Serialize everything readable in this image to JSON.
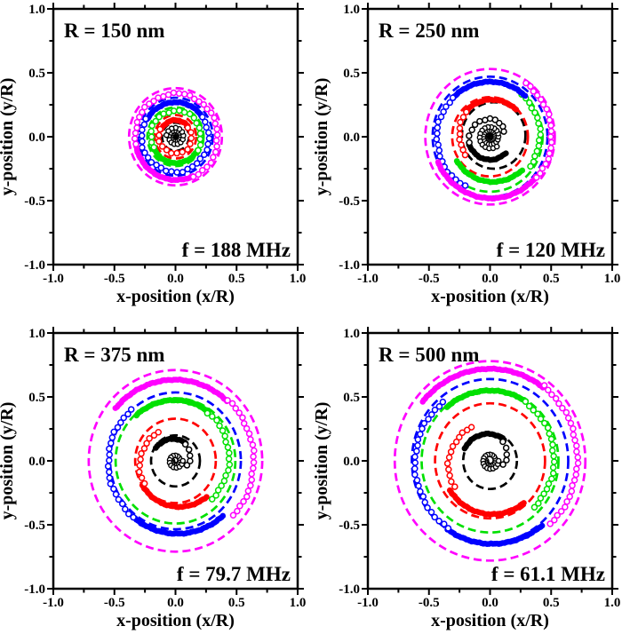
{
  "figure": {
    "background": "#ffffff",
    "text_color": "#000000",
    "description_colors": {
      "black": "#000000",
      "red": "#FF0000",
      "green": "#00E000",
      "blue": "#0000FF",
      "magenta": "#FF00FF"
    }
  },
  "chart_data": [
    {
      "type": "scatter",
      "radius_label": "R = 150 nm",
      "frequency_label": "f = 188 MHz",
      "xlabel": "x-position (x/R)",
      "ylabel": "y-position (y/R)",
      "xlim": [
        -1.0,
        1.0
      ],
      "ylim": [
        -1.0,
        1.0
      ],
      "tick_values": [
        -1,
        -0.5,
        0,
        0.5,
        1
      ],
      "xtick_labels": [
        "-1.0",
        "-0.5",
        "0.0",
        "0.5",
        "1.0"
      ],
      "ytick_labels": [
        "-1.0",
        "-0.5",
        "0.0",
        "0.5",
        "1.0"
      ],
      "minor_tick_step": 0.25,
      "series": [
        {
          "name": "black-segment",
          "color": "#000000",
          "dashed_circle": {
            "r": 0.11
          },
          "core_spiral": {
            "a0": 170,
            "turns": 3.0,
            "r0": 0.008,
            "r1": 0.075
          }
        },
        {
          "name": "red-segment",
          "color": "#FF0000",
          "dashed_circle": {
            "r": 0.17
          },
          "thick_arc": {
            "a0": 40,
            "a1": 155,
            "r0": 0.13,
            "r1": 0.13
          },
          "sparse_arc": {
            "a0": 155,
            "a1": 395,
            "r0": 0.135,
            "r1": 0.13
          }
        },
        {
          "name": "green-segment",
          "color": "#00E000",
          "dashed_circle": {
            "r": 0.23
          },
          "thick_arc": {
            "a0": 205,
            "a1": 330,
            "r0": 0.2,
            "r1": 0.21
          },
          "sparse_arc": {
            "a0": -30,
            "a1": 205,
            "r0": 0.21,
            "r1": 0.2
          }
        },
        {
          "name": "blue-segment",
          "color": "#0000FF",
          "dashed_circle": {
            "r": 0.305
          },
          "thick_arc": {
            "a0": 35,
            "a1": 150,
            "r0": 0.27,
            "r1": 0.27
          },
          "sparse_arc": {
            "a0": 150,
            "a1": 395,
            "r0": 0.28,
            "r1": 0.27
          }
        },
        {
          "name": "magenta-segment",
          "color": "#FF00FF",
          "dashed_circle": {
            "r": 0.38
          },
          "thick_arc": {
            "a0": 190,
            "a1": 295,
            "r0": 0.33,
            "r1": 0.34
          },
          "sparse_arc": {
            "a0": -65,
            "a1": 190,
            "r0": 0.35,
            "r1": 0.33
          }
        }
      ]
    },
    {
      "type": "scatter",
      "radius_label": "R = 250 nm",
      "frequency_label": "f = 120 MHz",
      "xlabel": "x-position (x/R)",
      "ylabel": "y-position (y/R)",
      "xlim": [
        -1.0,
        1.0
      ],
      "ylim": [
        -1.0,
        1.0
      ],
      "tick_values": [
        -1,
        -0.5,
        0,
        0.5,
        1
      ],
      "xtick_labels": [
        "-1.0",
        "-0.5",
        "0.0",
        "0.5",
        "1.0"
      ],
      "ytick_labels": [
        "-1.0",
        "-0.5",
        "0.0",
        "0.5",
        "1.0"
      ],
      "minor_tick_step": 0.25,
      "series": [
        {
          "name": "black-segment",
          "color": "#000000",
          "dashed_circle": {
            "r": 0.26,
            "cx": 0.03,
            "cy": 0.01
          },
          "core_spiral": {
            "a0": 90,
            "turns": 2.6,
            "r0": 0.015,
            "r1": 0.095
          },
          "sparse_arc": {
            "a0": 20,
            "a1": 195,
            "r0": 0.12,
            "r1": 0.17
          },
          "thick_arc": {
            "a0": 195,
            "a1": 315,
            "r0": 0.18,
            "r1": 0.18
          }
        },
        {
          "name": "red-segment",
          "color": "#FF0000",
          "dashed_circle": {
            "r": 0.31
          },
          "sparse_arc": {
            "a0": 135,
            "a1": 215,
            "r0": 0.27,
            "r1": 0.24
          },
          "thick_arc": {
            "a0": 45,
            "a1": 135,
            "r0": 0.3,
            "r1": 0.28
          }
        },
        {
          "name": "green-segment",
          "color": "#00E000",
          "dashed_circle": {
            "r": 0.43
          },
          "thick_arc": {
            "a0": 215,
            "a1": 315,
            "r0": 0.33,
            "r1": 0.37
          },
          "sparse_arc": {
            "a0": -35,
            "a1": 52,
            "r0": 0.4,
            "r1": 0.42
          }
        },
        {
          "name": "blue-segment",
          "color": "#0000FF",
          "dashed_circle": {
            "r": 0.47
          },
          "thick_arc": {
            "a0": 48,
            "a1": 135,
            "r0": 0.43,
            "r1": 0.43
          },
          "sparse_arc": {
            "a0": 135,
            "a1": 242,
            "r0": 0.43,
            "r1": 0.44
          }
        },
        {
          "name": "magenta-segment",
          "color": "#FF00FF",
          "dashed_circle": {
            "r": 0.53
          },
          "thick_arc": {
            "a0": 205,
            "a1": 320,
            "r0": 0.47,
            "r1": 0.49
          },
          "sparse_arc": {
            "a0": -40,
            "a1": 55,
            "r0": 0.5,
            "r1": 0.51
          }
        }
      ]
    },
    {
      "type": "scatter",
      "radius_label": "R = 375 nm",
      "frequency_label": "f = 79.7 MHz",
      "xlabel": "x-position (x/R)",
      "ylabel": "y-position (y/R)",
      "xlim": [
        -1.0,
        1.0
      ],
      "ylim": [
        -1.0,
        1.0
      ],
      "tick_values": [
        -1,
        -0.5,
        0,
        0.5,
        1
      ],
      "xtick_labels": [
        "-1.0",
        "-0.5",
        "0.0",
        "0.5",
        "1.0"
      ],
      "ytick_labels": [
        "-1.0",
        "-0.5",
        "0.0",
        "0.5",
        "1.0"
      ],
      "minor_tick_step": 0.25,
      "series": [
        {
          "name": "black-segment",
          "color": "#000000",
          "dashed_circle": {
            "r": 0.2
          },
          "core_spiral": {
            "a0": 180,
            "turns": 1.5,
            "r0": 0.025,
            "r1": 0.06
          },
          "sparse_arc": {
            "a0": -20,
            "a1": 58,
            "r0": 0.1,
            "r1": 0.15
          },
          "thick_arc": {
            "a0": 58,
            "a1": 148,
            "r0": 0.16,
            "r1": 0.19
          }
        },
        {
          "name": "red-segment",
          "color": "#FF0000",
          "dashed_circle": {
            "r": 0.33
          },
          "sparse_arc": {
            "a0": 122,
            "a1": 215,
            "r0": 0.26,
            "r1": 0.31
          },
          "thick_arc": {
            "a0": 215,
            "a1": 312,
            "r0": 0.33,
            "r1": 0.38
          }
        },
        {
          "name": "green-segment",
          "color": "#00E000",
          "dashed_circle": {
            "r": 0.49
          },
          "sparse_arc": {
            "a0": -45,
            "a1": 55,
            "r0": 0.42,
            "r1": 0.46
          },
          "thick_arc": {
            "a0": 55,
            "a1": 132,
            "r0": 0.47,
            "r1": 0.48
          }
        },
        {
          "name": "blue-segment",
          "color": "#0000FF",
          "dashed_circle": {
            "r": 0.535
          },
          "sparse_arc": {
            "a0": 132,
            "a1": 232,
            "r0": 0.54,
            "r1": 0.56
          },
          "thick_arc": {
            "a0": 232,
            "a1": 312,
            "r0": 0.56,
            "r1": 0.58
          }
        },
        {
          "name": "magenta-segment",
          "color": "#FF00FF",
          "dashed_circle": {
            "r": 0.71
          },
          "sparse_arc": {
            "a0": -42,
            "a1": 48,
            "r0": 0.64,
            "r1": 0.64
          },
          "thick_arc": {
            "a0": 48,
            "a1": 140,
            "r0": 0.63,
            "r1": 0.64
          }
        }
      ]
    },
    {
      "type": "scatter",
      "radius_label": "R = 500 nm",
      "frequency_label": "f = 61.1 MHz",
      "xlabel": "x-position (x/R)",
      "ylabel": "y-position (y/R)",
      "xlim": [
        -1.0,
        1.0
      ],
      "ylim": [
        -1.0,
        1.0
      ],
      "tick_values": [
        -1,
        -0.5,
        0,
        0.5,
        1
      ],
      "xtick_labels": [
        "-1.0",
        "-0.5",
        "0.0",
        "0.5",
        "1.0"
      ],
      "ytick_labels": [
        "-1.0",
        "-0.5",
        "0.0",
        "0.5",
        "1.0"
      ],
      "minor_tick_step": 0.25,
      "series": [
        {
          "name": "black-segment",
          "color": "#000000",
          "dashed_circle": {
            "r": 0.22
          },
          "core_spiral": {
            "a0": 180,
            "turns": 1.5,
            "r0": 0.03,
            "r1": 0.07
          },
          "sparse_arc": {
            "a0": -15,
            "a1": 55,
            "r0": 0.11,
            "r1": 0.18
          },
          "thick_arc": {
            "a0": 55,
            "a1": 155,
            "r0": 0.2,
            "r1": 0.23
          }
        },
        {
          "name": "red-segment",
          "color": "#FF0000",
          "dashed_circle": {
            "r": 0.45
          },
          "sparse_arc": {
            "a0": 120,
            "a1": 215,
            "r0": 0.3,
            "r1": 0.36
          },
          "thick_arc": {
            "a0": 215,
            "a1": 310,
            "r0": 0.4,
            "r1": 0.43
          }
        },
        {
          "name": "green-segment",
          "color": "#00E000",
          "dashed_circle": {
            "r": 0.56
          },
          "sparse_arc": {
            "a0": -45,
            "a1": 58,
            "r0": 0.51,
            "r1": 0.54
          },
          "thick_arc": {
            "a0": 58,
            "a1": 130,
            "r0": 0.55,
            "r1": 0.55
          }
        },
        {
          "name": "blue-segment",
          "color": "#0000FF",
          "dashed_circle": {
            "r": 0.64
          },
          "sparse_arc": {
            "a0": 130,
            "a1": 237,
            "r0": 0.6,
            "r1": 0.63
          },
          "thick_arc": {
            "a0": 237,
            "a1": 310,
            "r0": 0.64,
            "r1": 0.66
          }
        },
        {
          "name": "magenta-segment",
          "color": "#FF00FF",
          "dashed_circle": {
            "r": 0.78
          },
          "sparse_arc": {
            "a0": -45,
            "a1": 53,
            "r0": 0.7,
            "r1": 0.73
          },
          "thick_arc": {
            "a0": 53,
            "a1": 140,
            "r0": 0.72,
            "r1": 0.72
          }
        }
      ]
    }
  ]
}
